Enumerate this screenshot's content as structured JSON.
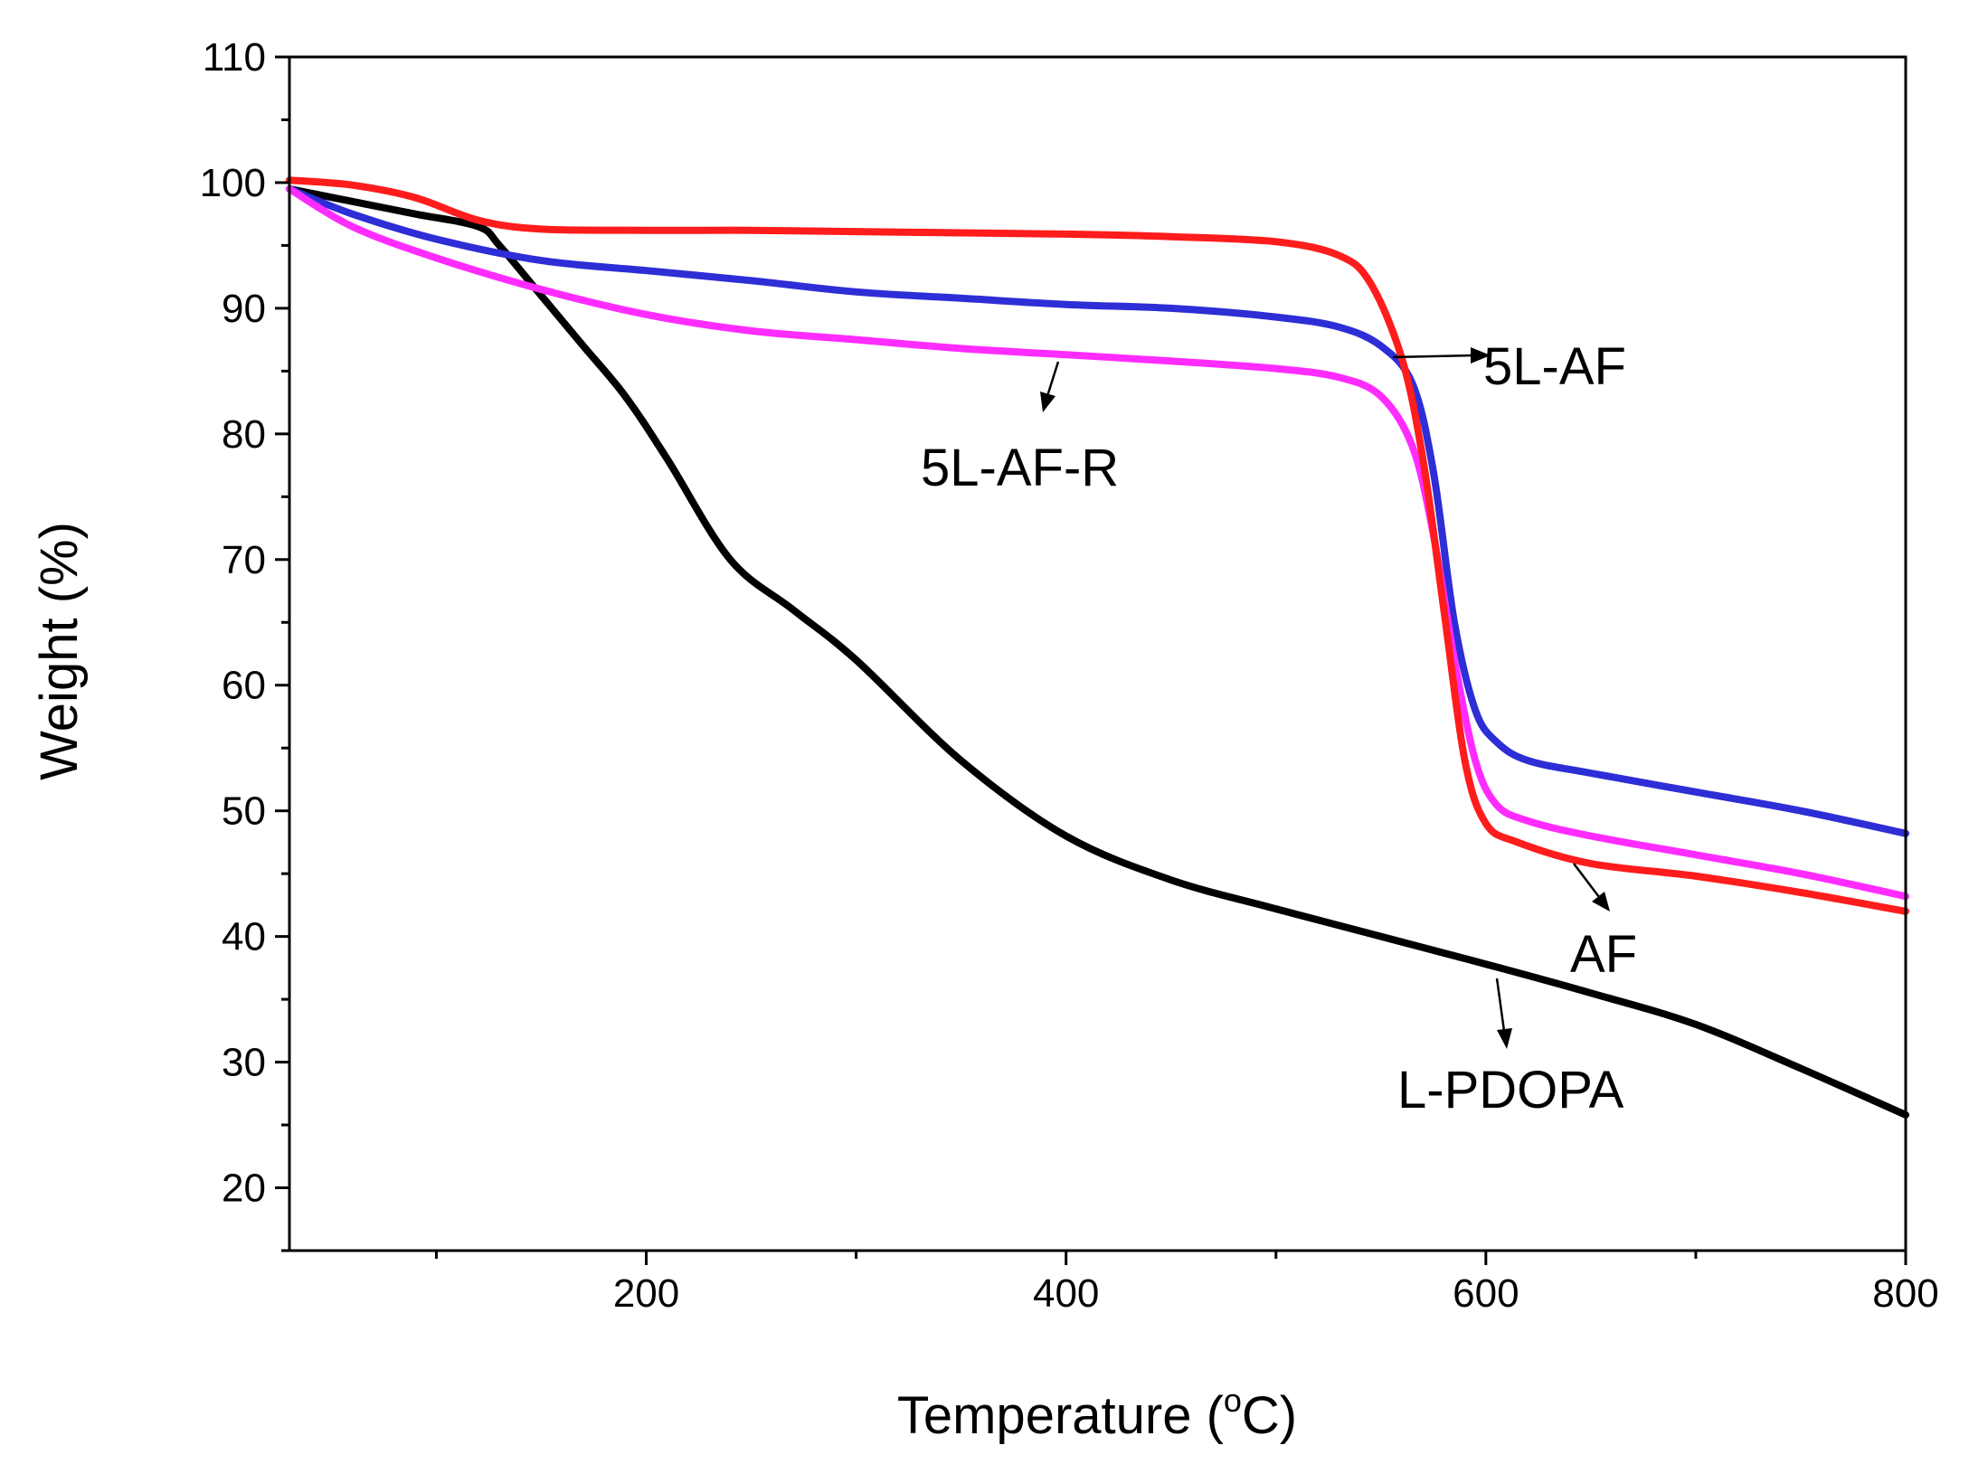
{
  "chart_data": {
    "type": "line",
    "title": "",
    "xlabel": "Temperature (",
    "xlabel_sup": "o",
    "xlabel_unit": "C)",
    "ylabel": "Weight (%)",
    "xlim": [
      30,
      800
    ],
    "ylim": [
      15,
      110
    ],
    "xticks": [
      200,
      400,
      600,
      800
    ],
    "xticks_minor": [
      100,
      300,
      500,
      700
    ],
    "yticks": [
      20,
      30,
      40,
      50,
      60,
      70,
      80,
      90,
      100,
      110
    ],
    "grid": false,
    "series": [
      {
        "name": "L-PDOPA",
        "color": "#000000",
        "x": [
          30,
          60,
          90,
          120,
          130,
          150,
          170,
          190,
          210,
          240,
          270,
          300,
          350,
          400,
          450,
          500,
          550,
          600,
          650,
          700,
          750,
          800
        ],
        "y": [
          99.5,
          98.5,
          97.5,
          96.5,
          95,
          91,
          87,
          83,
          78,
          70,
          66,
          62,
          54,
          48,
          44.5,
          42.2,
          40,
          37.8,
          35.5,
          33,
          29.5,
          25.8
        ]
      },
      {
        "name": "5L-AF",
        "color": "#2e2ed6",
        "x": [
          30,
          60,
          100,
          150,
          200,
          250,
          300,
          350,
          400,
          450,
          500,
          530,
          550,
          565,
          575,
          585,
          595,
          605,
          620,
          650,
          700,
          750,
          800
        ],
        "y": [
          99.5,
          97.5,
          95.5,
          93.8,
          93,
          92.2,
          91.3,
          90.8,
          90.3,
          90,
          89.3,
          88.5,
          87,
          84,
          77,
          65,
          58,
          55.5,
          54,
          53,
          51.5,
          50,
          48.2
        ]
      },
      {
        "name": "5L-AF-R",
        "color": "#ff2cff",
        "x": [
          30,
          60,
          100,
          150,
          200,
          250,
          300,
          350,
          400,
          450,
          500,
          530,
          550,
          565,
          575,
          585,
          595,
          605,
          620,
          650,
          700,
          750,
          800
        ],
        "y": [
          99.5,
          96.5,
          94,
          91.5,
          89.5,
          88.2,
          87.5,
          86.8,
          86.3,
          85.8,
          85.2,
          84.5,
          83,
          79,
          72,
          62,
          54,
          50.5,
          49.2,
          48,
          46.5,
          45,
          43.2
        ]
      },
      {
        "name": "AF",
        "color": "#ff1c1c",
        "x": [
          30,
          60,
          90,
          120,
          150,
          200,
          250,
          300,
          350,
          400,
          450,
          500,
          530,
          545,
          560,
          570,
          580,
          590,
          600,
          615,
          650,
          700,
          750,
          800
        ],
        "y": [
          100.2,
          99.8,
          98.8,
          97,
          96.3,
          96.2,
          96.2,
          96.1,
          96,
          95.9,
          95.7,
          95.3,
          94.2,
          92,
          86,
          78,
          66,
          54,
          49,
          47.5,
          45.8,
          44.8,
          43.5,
          42
        ]
      }
    ],
    "annotations": [
      {
        "text": "5L-AF",
        "series": "5L-AF"
      },
      {
        "text": "5L-AF-R",
        "series": "5L-AF-R"
      },
      {
        "text": "AF",
        "series": "AF"
      },
      {
        "text": "L-PDOPA",
        "series": "L-PDOPA"
      }
    ]
  }
}
